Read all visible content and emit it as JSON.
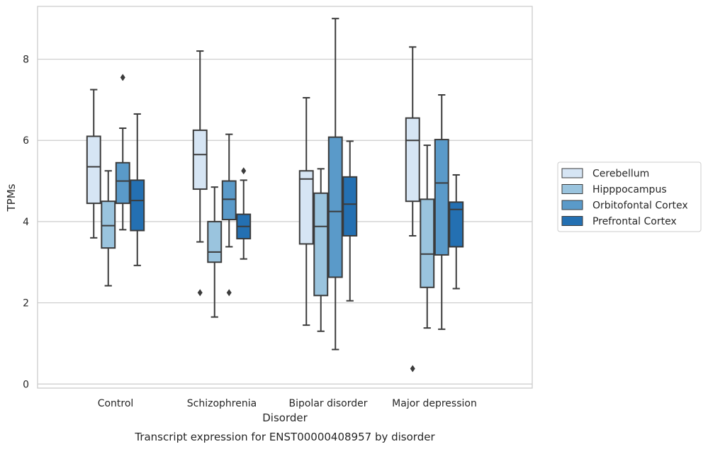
{
  "chart_data": {
    "type": "box",
    "title": "",
    "caption": "Transcript expression for ENST00000408957 by disorder",
    "xlabel": "Disorder",
    "ylabel": "TPMs",
    "ylim": [
      -0.1,
      9.3
    ],
    "yticks": [
      0,
      2,
      4,
      6,
      8
    ],
    "grid": true,
    "legend_position": "right",
    "categories": [
      "Control",
      "Schizophrenia",
      "Bipolar disorder",
      "Major depression"
    ],
    "series": [
      {
        "name": "Cerebellum",
        "color": "#d6e5f4",
        "boxes": [
          {
            "whisker_low": 3.6,
            "q1": 4.45,
            "median": 5.35,
            "q3": 6.1,
            "whisker_high": 7.25,
            "outliers": []
          },
          {
            "whisker_low": 3.5,
            "q1": 4.8,
            "median": 5.65,
            "q3": 6.25,
            "whisker_high": 8.2,
            "outliers": [
              2.25
            ]
          },
          {
            "whisker_low": 1.45,
            "q1": 3.45,
            "median": 5.05,
            "q3": 5.25,
            "whisker_high": 7.05,
            "outliers": []
          },
          {
            "whisker_low": 3.65,
            "q1": 4.5,
            "median": 6.0,
            "q3": 6.55,
            "whisker_high": 8.3,
            "outliers": [
              0.38
            ]
          }
        ]
      },
      {
        "name": "Hipppocampus",
        "color": "#9ac4de",
        "boxes": [
          {
            "whisker_low": 2.42,
            "q1": 3.35,
            "median": 3.9,
            "q3": 4.5,
            "whisker_high": 5.25,
            "outliers": []
          },
          {
            "whisker_low": 1.65,
            "q1": 3.0,
            "median": 3.25,
            "q3": 4.0,
            "whisker_high": 4.85,
            "outliers": []
          },
          {
            "whisker_low": 1.3,
            "q1": 2.18,
            "median": 3.88,
            "q3": 4.7,
            "whisker_high": 5.3,
            "outliers": []
          },
          {
            "whisker_low": 1.38,
            "q1": 2.38,
            "median": 3.2,
            "q3": 4.55,
            "whisker_high": 5.88,
            "outliers": []
          }
        ]
      },
      {
        "name": "Orbitofontal Cortex",
        "color": "#5a9ac9",
        "boxes": [
          {
            "whisker_low": 3.8,
            "q1": 4.45,
            "median": 5.0,
            "q3": 5.45,
            "whisker_high": 6.3,
            "outliers": [
              7.55
            ]
          },
          {
            "whisker_low": 3.38,
            "q1": 4.05,
            "median": 4.55,
            "q3": 5.0,
            "whisker_high": 6.15,
            "outliers": [
              2.25
            ]
          },
          {
            "whisker_low": 0.85,
            "q1": 2.63,
            "median": 4.25,
            "q3": 6.08,
            "whisker_high": 9.0,
            "outliers": []
          },
          {
            "whisker_low": 1.35,
            "q1": 3.18,
            "median": 4.95,
            "q3": 6.02,
            "whisker_high": 7.12,
            "outliers": []
          }
        ]
      },
      {
        "name": "Prefrontal Cortex",
        "color": "#2470b2",
        "boxes": [
          {
            "whisker_low": 2.92,
            "q1": 3.78,
            "median": 4.52,
            "q3": 5.02,
            "whisker_high": 6.65,
            "outliers": []
          },
          {
            "whisker_low": 3.08,
            "q1": 3.58,
            "median": 3.88,
            "q3": 4.18,
            "whisker_high": 5.02,
            "outliers": [
              5.25
            ]
          },
          {
            "whisker_low": 2.05,
            "q1": 3.65,
            "median": 4.43,
            "q3": 5.1,
            "whisker_high": 5.98,
            "outliers": []
          },
          {
            "whisker_low": 2.35,
            "q1": 3.38,
            "median": 4.3,
            "q3": 4.48,
            "whisker_high": 5.15,
            "outliers": []
          }
        ]
      }
    ]
  }
}
